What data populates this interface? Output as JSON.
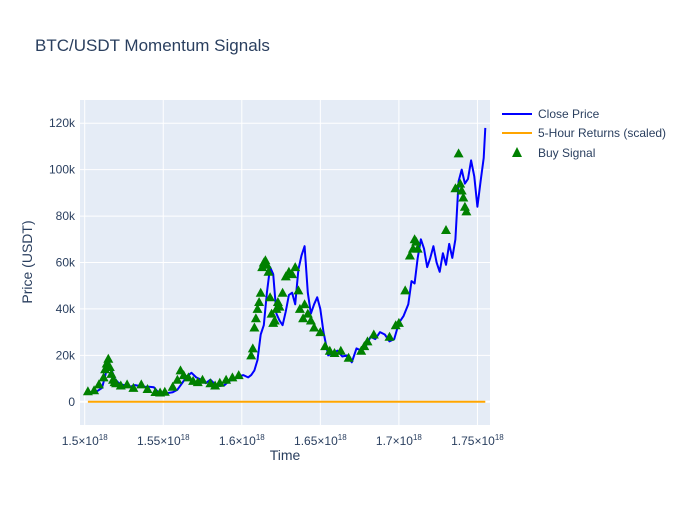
{
  "chart_data": {
    "type": "line",
    "title": "BTC/USDT Momentum Signals",
    "xlabel": "Time",
    "ylabel": "Price (USDT)",
    "xlim": [
      1.497e+18,
      1.758e+18
    ],
    "ylim": [
      -10000,
      130000
    ],
    "x_ticks": [
      {
        "value": 1.5e+18,
        "mant": "1.5",
        "exp": "18"
      },
      {
        "value": 1.55e+18,
        "mant": "1.55",
        "exp": "18"
      },
      {
        "value": 1.6e+18,
        "mant": "1.6",
        "exp": "18"
      },
      {
        "value": 1.65e+18,
        "mant": "1.65",
        "exp": "18"
      },
      {
        "value": 1.7e+18,
        "mant": "1.7",
        "exp": "18"
      },
      {
        "value": 1.75e+18,
        "mant": "1.75",
        "exp": "18"
      }
    ],
    "y_ticks": [
      {
        "value": 0,
        "label": "0"
      },
      {
        "value": 20000,
        "label": "20k"
      },
      {
        "value": 40000,
        "label": "40k"
      },
      {
        "value": 60000,
        "label": "60k"
      },
      {
        "value": 80000,
        "label": "80k"
      },
      {
        "value": 100000,
        "label": "100k"
      },
      {
        "value": 120000,
        "label": "120k"
      }
    ],
    "legend_position": "top-right",
    "grid": true,
    "colors": {
      "plot_bg": "#e5ecf6",
      "grid": "#ffffff",
      "close": "#0000ff",
      "returns": "#ffa500",
      "signal": "#008000",
      "text": "#2a3f5f"
    },
    "series": [
      {
        "name": "Close Price",
        "kind": "line",
        "x": [
          1.502e+18,
          1.505e+18,
          1.508e+18,
          1.511e+18,
          1.513e+18,
          1.515e+18,
          1.517e+18,
          1.519e+18,
          1.521e+18,
          1.523e+18,
          1.526e+18,
          1.529e+18,
          1.532e+18,
          1.535e+18,
          1.538e+18,
          1.541e+18,
          1.544e+18,
          1.547e+18,
          1.55e+18,
          1.553e+18,
          1.556e+18,
          1.559e+18,
          1.562e+18,
          1.565e+18,
          1.568e+18,
          1.571e+18,
          1.574e+18,
          1.577e+18,
          1.58e+18,
          1.583e+18,
          1.586e+18,
          1.589e+18,
          1.592e+18,
          1.595e+18,
          1.598e+18,
          1.601e+18,
          1.604e+18,
          1.606e+18,
          1.608e+18,
          1.61e+18,
          1.612e+18,
          1.614e+18,
          1.616e+18,
          1.618e+18,
          1.62e+18,
          1.622e+18,
          1.624e+18,
          1.626e+18,
          1.628e+18,
          1.63e+18,
          1.632e+18,
          1.634e+18,
          1.636e+18,
          1.638e+18,
          1.64e+18,
          1.642e+18,
          1.644e+18,
          1.646e+18,
          1.648e+18,
          1.65e+18,
          1.652e+18,
          1.655e+18,
          1.658e+18,
          1.661e+18,
          1.664e+18,
          1.667e+18,
          1.67e+18,
          1.673e+18,
          1.676e+18,
          1.679e+18,
          1.682e+18,
          1.685e+18,
          1.688e+18,
          1.691e+18,
          1.694e+18,
          1.697e+18,
          1.7e+18,
          1.703e+18,
          1.706e+18,
          1.708e+18,
          1.71e+18,
          1.712e+18,
          1.714e+18,
          1.716e+18,
          1.718e+18,
          1.72e+18,
          1.722e+18,
          1.724e+18,
          1.726e+18,
          1.728e+18,
          1.73e+18,
          1.732e+18,
          1.734e+18,
          1.736e+18,
          1.738e+18,
          1.74e+18,
          1.742e+18,
          1.744e+18,
          1.746e+18,
          1.748e+18,
          1.75e+18,
          1.752e+18,
          1.754e+18,
          1.755e+18
        ],
        "y": [
          4300,
          4000,
          4600,
          6000,
          11000,
          17000,
          14000,
          10000,
          8500,
          7500,
          7000,
          6500,
          7200,
          6800,
          6400,
          6500,
          6300,
          4000,
          3700,
          3800,
          4100,
          5200,
          8000,
          11000,
          12500,
          10500,
          9500,
          8000,
          9500,
          7500,
          6800,
          7200,
          9000,
          9500,
          11000,
          11500,
          10500,
          11500,
          13500,
          18000,
          29000,
          33000,
          47000,
          58000,
          55000,
          38000,
          35000,
          33000,
          39000,
          46000,
          47000,
          42000,
          57000,
          63000,
          67000,
          47000,
          38000,
          42000,
          45000,
          40000,
          30000,
          20000,
          21000,
          22000,
          19500,
          20000,
          17000,
          23000,
          22000,
          24000,
          28000,
          27000,
          30000,
          29000,
          26000,
          27000,
          34000,
          37000,
          42000,
          52000,
          51000,
          62000,
          70000,
          66000,
          58000,
          62000,
          67000,
          60000,
          56000,
          64000,
          59000,
          68000,
          62000,
          70000,
          95000,
          100000,
          94000,
          96000,
          104000,
          97000,
          84000,
          95000,
          105000,
          118000
        ]
      },
      {
        "name": "5-Hour Returns (scaled)",
        "kind": "line",
        "x": [
          1.502e+18,
          1.52e+18,
          1.54e+18,
          1.56e+18,
          1.58e+18,
          1.6e+18,
          1.62e+18,
          1.64e+18,
          1.66e+18,
          1.68e+18,
          1.7e+18,
          1.72e+18,
          1.74e+18,
          1.755e+18
        ],
        "y": [
          0,
          0,
          0,
          0,
          0,
          0,
          0,
          0,
          0,
          0,
          0,
          0,
          0,
          0
        ]
      },
      {
        "name": "Buy Signal",
        "kind": "markers",
        "x": [
          1.502e+18,
          1.506e+18,
          1.509e+18,
          1.512e+18,
          1.513e+18,
          1.514e+18,
          1.515e+18,
          1.516e+18,
          1.517e+18,
          1.518e+18,
          1.519e+18,
          1.52e+18,
          1.523e+18,
          1.527e+18,
          1.531e+18,
          1.536e+18,
          1.54e+18,
          1.545e+18,
          1.548e+18,
          1.551e+18,
          1.556e+18,
          1.559e+18,
          1.561e+18,
          1.563e+18,
          1.566e+18,
          1.569e+18,
          1.572e+18,
          1.575e+18,
          1.58e+18,
          1.583e+18,
          1.586e+18,
          1.59e+18,
          1.594e+18,
          1.598e+18,
          1.606e+18,
          1.607e+18,
          1.608e+18,
          1.609e+18,
          1.61e+18,
          1.611e+18,
          1.612e+18,
          1.613e+18,
          1.614e+18,
          1.615e+18,
          1.616e+18,
          1.617e+18,
          1.618e+18,
          1.619e+18,
          1.62e+18,
          1.621e+18,
          1.622e+18,
          1.623e+18,
          1.624e+18,
          1.626e+18,
          1.628e+18,
          1.63e+18,
          1.632e+18,
          1.634e+18,
          1.636e+18,
          1.637e+18,
          1.639e+18,
          1.64e+18,
          1.642e+18,
          1.644e+18,
          1.646e+18,
          1.65e+18,
          1.653e+18,
          1.656e+18,
          1.659e+18,
          1.663e+18,
          1.668e+18,
          1.676e+18,
          1.678e+18,
          1.68e+18,
          1.684e+18,
          1.694e+18,
          1.698e+18,
          1.7e+18,
          1.704e+18,
          1.707e+18,
          1.709e+18,
          1.71e+18,
          1.711e+18,
          1.712e+18,
          1.73e+18,
          1.736e+18,
          1.738e+18,
          1.739e+18,
          1.74e+18,
          1.741e+18,
          1.742e+18,
          1.743e+18
        ],
        "y": [
          4500,
          5000,
          7500,
          10500,
          14000,
          16500,
          18500,
          15000,
          12000,
          9500,
          8500,
          8000,
          7000,
          7500,
          6000,
          7500,
          5500,
          4200,
          4000,
          4300,
          6500,
          9500,
          13500,
          11500,
          10500,
          9000,
          8500,
          9500,
          8000,
          7000,
          8200,
          9500,
          10500,
          11500,
          20000,
          23000,
          32000,
          36000,
          40000,
          43000,
          47000,
          58000,
          60000,
          61000,
          59000,
          56000,
          45000,
          38000,
          34000,
          35000,
          40000,
          43000,
          41000,
          47000,
          54000,
          56000,
          55000,
          58000,
          48000,
          40000,
          36000,
          42000,
          38000,
          35000,
          32000,
          30000,
          24000,
          22000,
          21000,
          22000,
          19000,
          22000,
          24000,
          26000,
          29000,
          28000,
          33000,
          34000,
          48000,
          63000,
          66000,
          70000,
          69000,
          66000,
          74000,
          92000,
          107000,
          94000,
          91000,
          88000,
          84000,
          82000
        ]
      }
    ]
  }
}
